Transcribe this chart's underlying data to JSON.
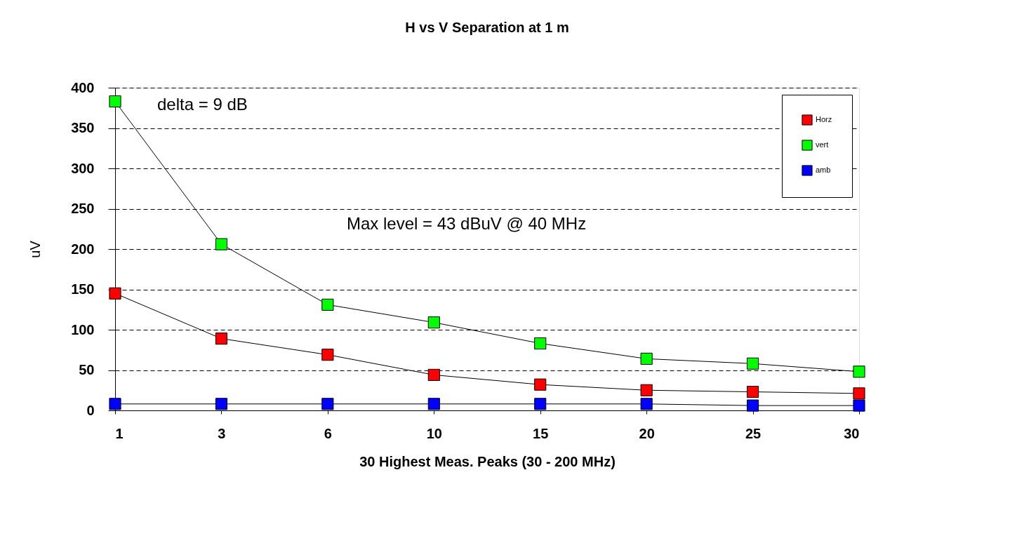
{
  "chart_data": {
    "type": "line",
    "title": "H vs V Separation at 1 m",
    "xlabel": "30 Highest Meas. Peaks (30 - 200 MHz)",
    "ylabel": "uV",
    "categories": [
      "1",
      "3",
      "6",
      "10",
      "15",
      "20",
      "25",
      "30"
    ],
    "series": [
      {
        "name": "Horz",
        "color": "#ff0000",
        "values": [
          145,
          89,
          69,
          44,
          32,
          25,
          23,
          21
        ]
      },
      {
        "name": "vert",
        "color": "#00ff00",
        "values": [
          383,
          206,
          131,
          109,
          83,
          64,
          58,
          48
        ]
      },
      {
        "name": "amb",
        "color": "#0000ff",
        "values": [
          8,
          8,
          8,
          8,
          8,
          8,
          6,
          6
        ]
      }
    ],
    "ylim": [
      0,
      400
    ],
    "yticks": [
      0,
      50,
      100,
      150,
      200,
      250,
      300,
      350,
      400
    ],
    "grid": "y",
    "legend": "top right",
    "marker": "square",
    "line_style": "solid",
    "annotations": [
      "delta = 9 dB",
      "Max level = 43 dBuV @ 40 MHz"
    ]
  }
}
